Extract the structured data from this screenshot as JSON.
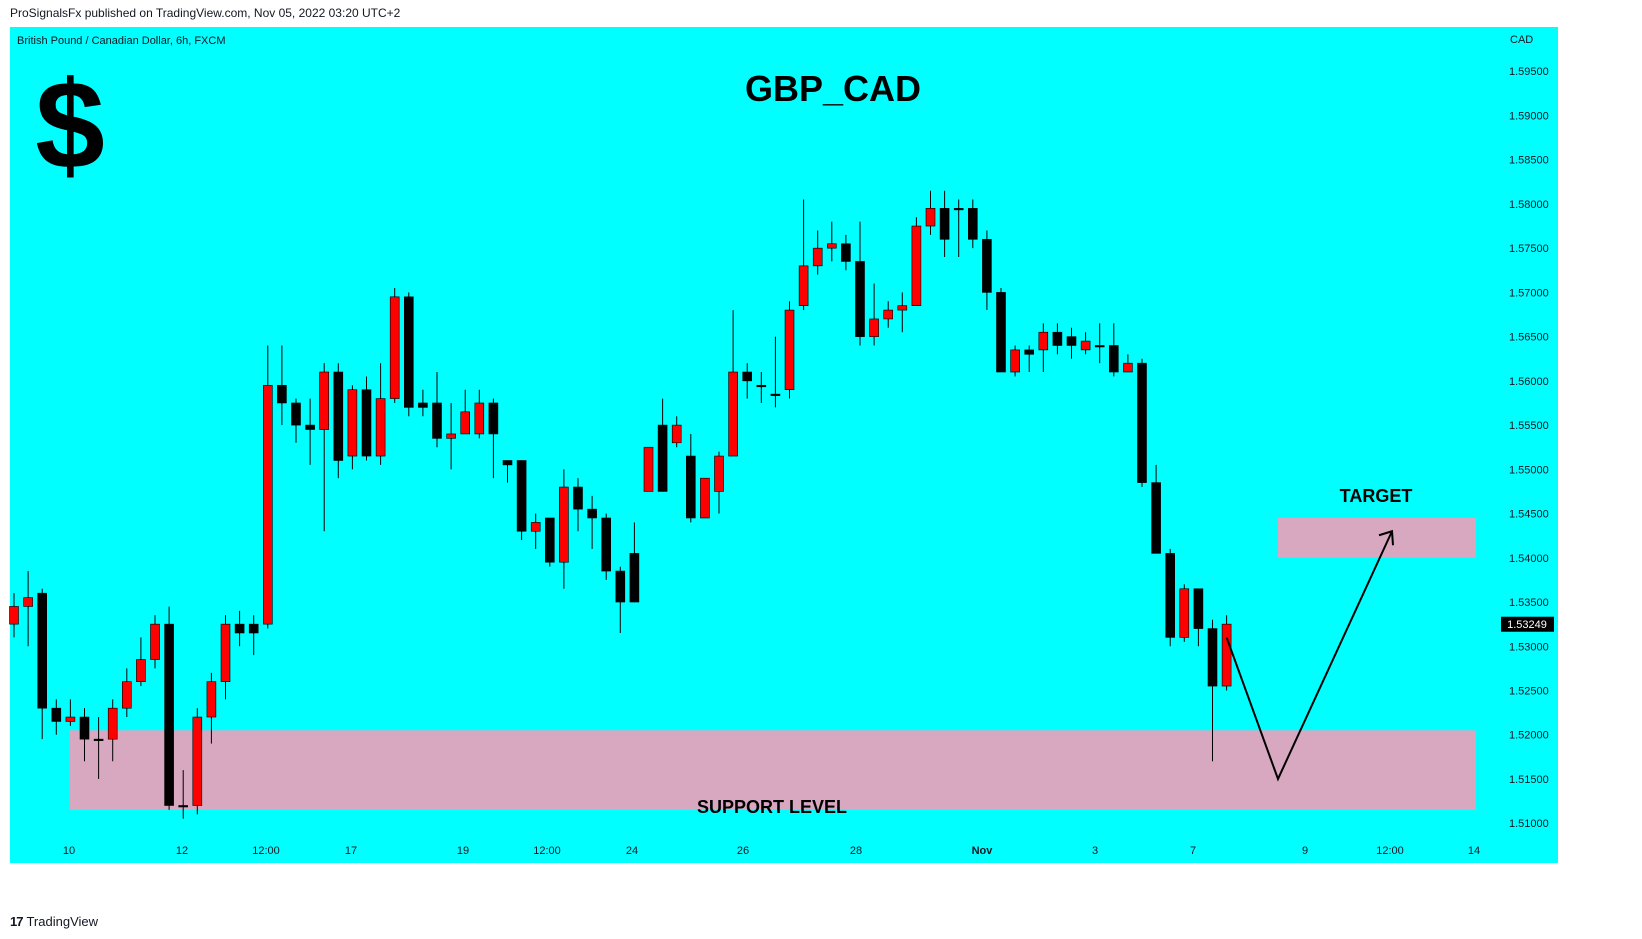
{
  "header": {
    "published": "ProSignalsFx published on TradingView.com, Nov 05, 2022 03:20 UTC+2"
  },
  "footer": {
    "logo": "17",
    "brand": "TradingView"
  },
  "colors": {
    "background": "#00ffff",
    "up": "#000000",
    "down": "#ff0000",
    "zone": "#d8a7c0",
    "price_tag": "#000000"
  },
  "chart": {
    "symbol": "British Pound / Canadian Dollar, 6h, FXCM",
    "currency": "CAD",
    "title": "GBP_CAD",
    "dollar_icon": "$",
    "support_label": "SUPPORT LEVEL",
    "target_label": "TARGET",
    "last_price": "1.53249"
  },
  "chart_data": {
    "type": "candlestick",
    "title": "GBP_CAD",
    "ylim": [
      1.5055,
      1.6
    ],
    "y_ticks": [
      "1.51000",
      "1.51500",
      "1.52000",
      "1.52500",
      "1.53000",
      "1.53500",
      "1.54000",
      "1.54500",
      "1.55000",
      "1.55500",
      "1.56000",
      "1.56500",
      "1.57000",
      "1.57500",
      "1.58000",
      "1.58500",
      "1.59000",
      "1.59500"
    ],
    "x_ticks": [
      "10",
      "12",
      "12:00",
      "17",
      "19",
      "12:00",
      "24",
      "26",
      "28",
      "Nov",
      "3",
      "7",
      "9",
      "12:00",
      "14"
    ],
    "candles": [
      [
        1.5345,
        1.5325,
        1.536,
        1.531
      ],
      [
        1.5355,
        1.5345,
        1.5385,
        1.53
      ],
      [
        1.523,
        1.536,
        1.5365,
        1.5195
      ],
      [
        1.5215,
        1.523,
        1.524,
        1.52
      ],
      [
        1.522,
        1.5215,
        1.524,
        1.521
      ],
      [
        1.5195,
        1.522,
        1.523,
        1.517
      ],
      [
        1.5195,
        1.5195,
        1.522,
        1.515
      ],
      [
        1.523,
        1.5195,
        1.524,
        1.517
      ],
      [
        1.526,
        1.523,
        1.5275,
        1.522
      ],
      [
        1.5285,
        1.526,
        1.531,
        1.5255
      ],
      [
        1.5325,
        1.5285,
        1.5335,
        1.5275
      ],
      [
        1.512,
        1.5325,
        1.5345,
        1.5115
      ],
      [
        1.512,
        1.512,
        1.516,
        1.5105
      ],
      [
        1.522,
        1.512,
        1.523,
        1.511
      ],
      [
        1.526,
        1.522,
        1.527,
        1.519
      ],
      [
        1.5325,
        1.526,
        1.5335,
        1.524
      ],
      [
        1.5315,
        1.5325,
        1.534,
        1.53
      ],
      [
        1.5315,
        1.5325,
        1.5335,
        1.529
      ],
      [
        1.5595,
        1.5325,
        1.564,
        1.532
      ],
      [
        1.5575,
        1.5595,
        1.564,
        1.555
      ],
      [
        1.555,
        1.5575,
        1.558,
        1.553
      ],
      [
        1.5545,
        1.555,
        1.558,
        1.5505
      ],
      [
        1.561,
        1.5545,
        1.562,
        1.543
      ],
      [
        1.551,
        1.561,
        1.562,
        1.549
      ],
      [
        1.559,
        1.5515,
        1.5595,
        1.55
      ],
      [
        1.5515,
        1.559,
        1.5605,
        1.551
      ],
      [
        1.558,
        1.5515,
        1.562,
        1.5505
      ],
      [
        1.5695,
        1.558,
        1.5705,
        1.5575
      ],
      [
        1.557,
        1.5695,
        1.57,
        1.556
      ],
      [
        1.557,
        1.5575,
        1.559,
        1.556
      ],
      [
        1.5535,
        1.5575,
        1.561,
        1.5525
      ],
      [
        1.554,
        1.5535,
        1.5575,
        1.55
      ],
      [
        1.5565,
        1.554,
        1.559,
        1.554
      ],
      [
        1.5575,
        1.554,
        1.559,
        1.5535
      ],
      [
        1.554,
        1.5575,
        1.558,
        1.549
      ],
      [
        1.5505,
        1.551,
        1.551,
        1.5485
      ],
      [
        1.543,
        1.551,
        1.551,
        1.542
      ],
      [
        1.544,
        1.543,
        1.545,
        1.541
      ],
      [
        1.5395,
        1.5445,
        1.5445,
        1.539
      ],
      [
        1.548,
        1.5395,
        1.55,
        1.5365
      ],
      [
        1.5455,
        1.548,
        1.549,
        1.543
      ],
      [
        1.5445,
        1.5455,
        1.547,
        1.541
      ],
      [
        1.5385,
        1.5445,
        1.545,
        1.5375
      ],
      [
        1.535,
        1.5385,
        1.539,
        1.5315
      ],
      [
        1.535,
        1.5405,
        1.544,
        1.535
      ],
      [
        1.5525,
        1.5475,
        1.5525,
        1.5475
      ],
      [
        1.5475,
        1.555,
        1.558,
        1.5475
      ],
      [
        1.555,
        1.553,
        1.556,
        1.5525
      ],
      [
        1.5445,
        1.5515,
        1.554,
        1.544
      ],
      [
        1.549,
        1.5445,
        1.549,
        1.5445
      ],
      [
        1.5515,
        1.5475,
        1.552,
        1.545
      ],
      [
        1.561,
        1.5515,
        1.568,
        1.5515
      ],
      [
        1.56,
        1.561,
        1.562,
        1.558
      ],
      [
        1.5595,
        1.5595,
        1.561,
        1.5575
      ],
      [
        1.5585,
        1.5585,
        1.565,
        1.557
      ],
      [
        1.568,
        1.559,
        1.569,
        1.558
      ],
      [
        1.573,
        1.5685,
        1.5805,
        1.568
      ],
      [
        1.575,
        1.573,
        1.577,
        1.572
      ],
      [
        1.5755,
        1.575,
        1.578,
        1.5735
      ],
      [
        1.5735,
        1.5755,
        1.5765,
        1.5725
      ],
      [
        1.565,
        1.5735,
        1.578,
        1.564
      ],
      [
        1.567,
        1.565,
        1.571,
        1.564
      ],
      [
        1.568,
        1.567,
        1.569,
        1.566
      ],
      [
        1.5685,
        1.568,
        1.57,
        1.5655
      ],
      [
        1.5775,
        1.5685,
        1.5785,
        1.5685
      ],
      [
        1.5795,
        1.5775,
        1.5815,
        1.5765
      ],
      [
        1.576,
        1.5795,
        1.5815,
        1.574
      ],
      [
        1.5795,
        1.5795,
        1.5805,
        1.574
      ],
      [
        1.576,
        1.5795,
        1.5805,
        1.575
      ],
      [
        1.57,
        1.576,
        1.577,
        1.568
      ],
      [
        1.561,
        1.57,
        1.5705,
        1.561
      ],
      [
        1.5635,
        1.561,
        1.564,
        1.5605
      ],
      [
        1.563,
        1.5635,
        1.564,
        1.561
      ],
      [
        1.5655,
        1.5635,
        1.5665,
        1.561
      ],
      [
        1.564,
        1.5655,
        1.5665,
        1.563
      ],
      [
        1.564,
        1.565,
        1.566,
        1.5625
      ],
      [
        1.5645,
        1.5635,
        1.5655,
        1.563
      ],
      [
        1.564,
        1.564,
        1.5665,
        1.562
      ],
      [
        1.561,
        1.564,
        1.5665,
        1.5605
      ],
      [
        1.562,
        1.561,
        1.563,
        1.561
      ],
      [
        1.5485,
        1.562,
        1.5625,
        1.548
      ],
      [
        1.5405,
        1.5485,
        1.5505,
        1.5405
      ],
      [
        1.531,
        1.5405,
        1.541,
        1.53
      ],
      [
        1.5365,
        1.531,
        1.537,
        1.5305
      ],
      [
        1.532,
        1.5365,
        1.5365,
        1.53
      ],
      [
        1.5255,
        1.532,
        1.533,
        1.517
      ],
      [
        1.5325,
        1.5255,
        1.5335,
        1.525
      ]
    ],
    "support_zone": [
      1.5115,
      1.5205
    ],
    "target_zone": [
      1.54,
      1.5445
    ],
    "projection": [
      [
        "7",
        "1.5310"
      ],
      [
        "9",
        "1.5150"
      ],
      [
        "12:00",
        "1.5430"
      ]
    ]
  }
}
